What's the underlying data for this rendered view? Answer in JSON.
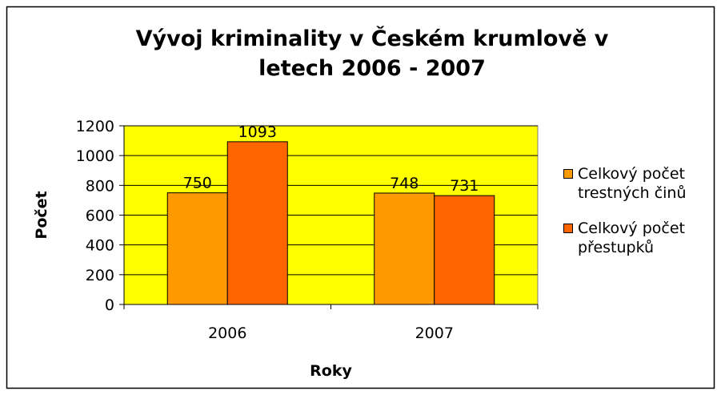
{
  "chart_data": {
    "type": "bar",
    "title": "Vývoj kriminality v Českém krumlově v letech 2006 - 2007",
    "x_label": "Roky",
    "y_label": "Počet",
    "categories": [
      "2006",
      "2007"
    ],
    "series": [
      {
        "name": "Celkový počet trestných činů",
        "color": "#ff9900",
        "values": [
          750,
          748
        ]
      },
      {
        "name": "Celkový počet přestupků",
        "color": "#ff6600",
        "values": [
          1093,
          731
        ]
      }
    ],
    "ylim": [
      0,
      1200
    ],
    "yticks": [
      0,
      200,
      400,
      600,
      800,
      1000,
      1200
    ],
    "grid": true,
    "plot_background": "#ffff00",
    "legend": "right"
  }
}
